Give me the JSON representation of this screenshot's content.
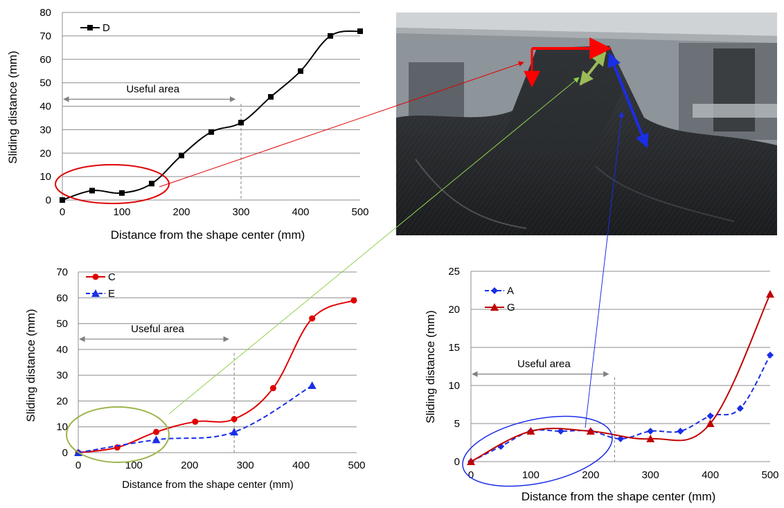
{
  "colors": {
    "chart1_series": "#000000",
    "series_red": "#e00000",
    "series_blue": "#1a2ee6",
    "series_dark_red": "#c00000",
    "ellipse_top": "#e00000",
    "ellipse_bottom_left": "#9bb54a",
    "ellipse_bottom_right": "#1a2ee6",
    "connector_top": "#e00000",
    "connector_bottom_left": "#92d050",
    "connector_bottom_right": "#1a2ee6"
  },
  "photo": {
    "arrows": [
      {
        "name": "red-arrow-horizontal",
        "color": "#ff0000"
      },
      {
        "name": "red-arrow-vertical",
        "color": "#ff0000"
      },
      {
        "name": "green-arrow",
        "color": "#9bbb59"
      },
      {
        "name": "blue-arrow",
        "color": "#1a2ee6"
      }
    ]
  },
  "chart_data": [
    {
      "type": "line",
      "title": "",
      "xlabel": "Distance from the shape center (mm)",
      "ylabel": "Sliding distance (mm)",
      "xlim": [
        0,
        500
      ],
      "ylim": [
        0,
        80
      ],
      "xticks": [
        "0",
        "100",
        "200",
        "300",
        "400",
        "500"
      ],
      "yticks": [
        "0",
        "10",
        "20",
        "30",
        "40",
        "50",
        "60",
        "70",
        "80"
      ],
      "grid": "horizontal",
      "legend_position": "top-left",
      "annotation": {
        "text": "Useful area",
        "x_from": 0,
        "x_to": 290,
        "y": 43,
        "boundary_x": 300
      },
      "series": [
        {
          "name": "D",
          "color": "#000000",
          "marker": "square",
          "line_style": "solid",
          "x": [
            0,
            50,
            100,
            150,
            200,
            250,
            300,
            350,
            400,
            450,
            500
          ],
          "y": [
            0,
            4,
            3,
            7,
            19,
            29,
            33,
            44,
            55,
            70,
            72
          ]
        }
      ]
    },
    {
      "type": "line",
      "title": "",
      "xlabel": "Distance from the shape center (mm)",
      "ylabel": "Sliding distance (mm)",
      "xlim": [
        0,
        500
      ],
      "ylim": [
        0,
        70
      ],
      "xticks": [
        "0",
        "100",
        "200",
        "300",
        "400",
        "500"
      ],
      "yticks": [
        "0",
        "10",
        "20",
        "30",
        "40",
        "50",
        "60",
        "70"
      ],
      "grid": "horizontal",
      "legend_position": "top-left",
      "annotation": {
        "text": "Useful area",
        "x_from": 0,
        "x_to": 270,
        "y": 44,
        "boundary_x": 280
      },
      "series": [
        {
          "name": "C",
          "color": "#e00000",
          "marker": "circle",
          "line_style": "solid",
          "x": [
            0,
            70,
            140,
            210,
            280,
            350,
            420,
            495
          ],
          "y": [
            0,
            2,
            8,
            12,
            13,
            25,
            52,
            59
          ]
        },
        {
          "name": "E",
          "color": "#1a2ee6",
          "marker": "triangle",
          "line_style": "dashed",
          "x": [
            0,
            140,
            280,
            420
          ],
          "y": [
            0,
            5,
            8,
            26
          ]
        }
      ]
    },
    {
      "type": "line",
      "title": "",
      "xlabel": "Distance from the shape center (mm)",
      "ylabel": "Sliding distance (mm)",
      "xlim": [
        0,
        500
      ],
      "ylim": [
        0,
        25
      ],
      "xticks": [
        "0",
        "100",
        "200",
        "300",
        "400",
        "500"
      ],
      "yticks": [
        "0",
        "5",
        "10",
        "15",
        "20",
        "25"
      ],
      "grid": "horizontal",
      "legend_position": "top-left",
      "annotation": {
        "text": "Useful area",
        "x_from": 0,
        "x_to": 230,
        "y": 11.5,
        "boundary_x": 240
      },
      "series": [
        {
          "name": "A",
          "color": "#1a2ee6",
          "marker": "diamond",
          "line_style": "dashed",
          "x": [
            0,
            50,
            100,
            150,
            200,
            250,
            300,
            350,
            400,
            450,
            500
          ],
          "y": [
            0,
            2,
            4,
            4,
            4,
            3,
            4,
            4,
            6,
            7,
            14
          ]
        },
        {
          "name": "G",
          "color": "#c00000",
          "marker": "triangle",
          "line_style": "solid",
          "x": [
            0,
            100,
            200,
            300,
            400,
            500
          ],
          "y": [
            0,
            4,
            4,
            3,
            5,
            22
          ]
        }
      ]
    }
  ]
}
